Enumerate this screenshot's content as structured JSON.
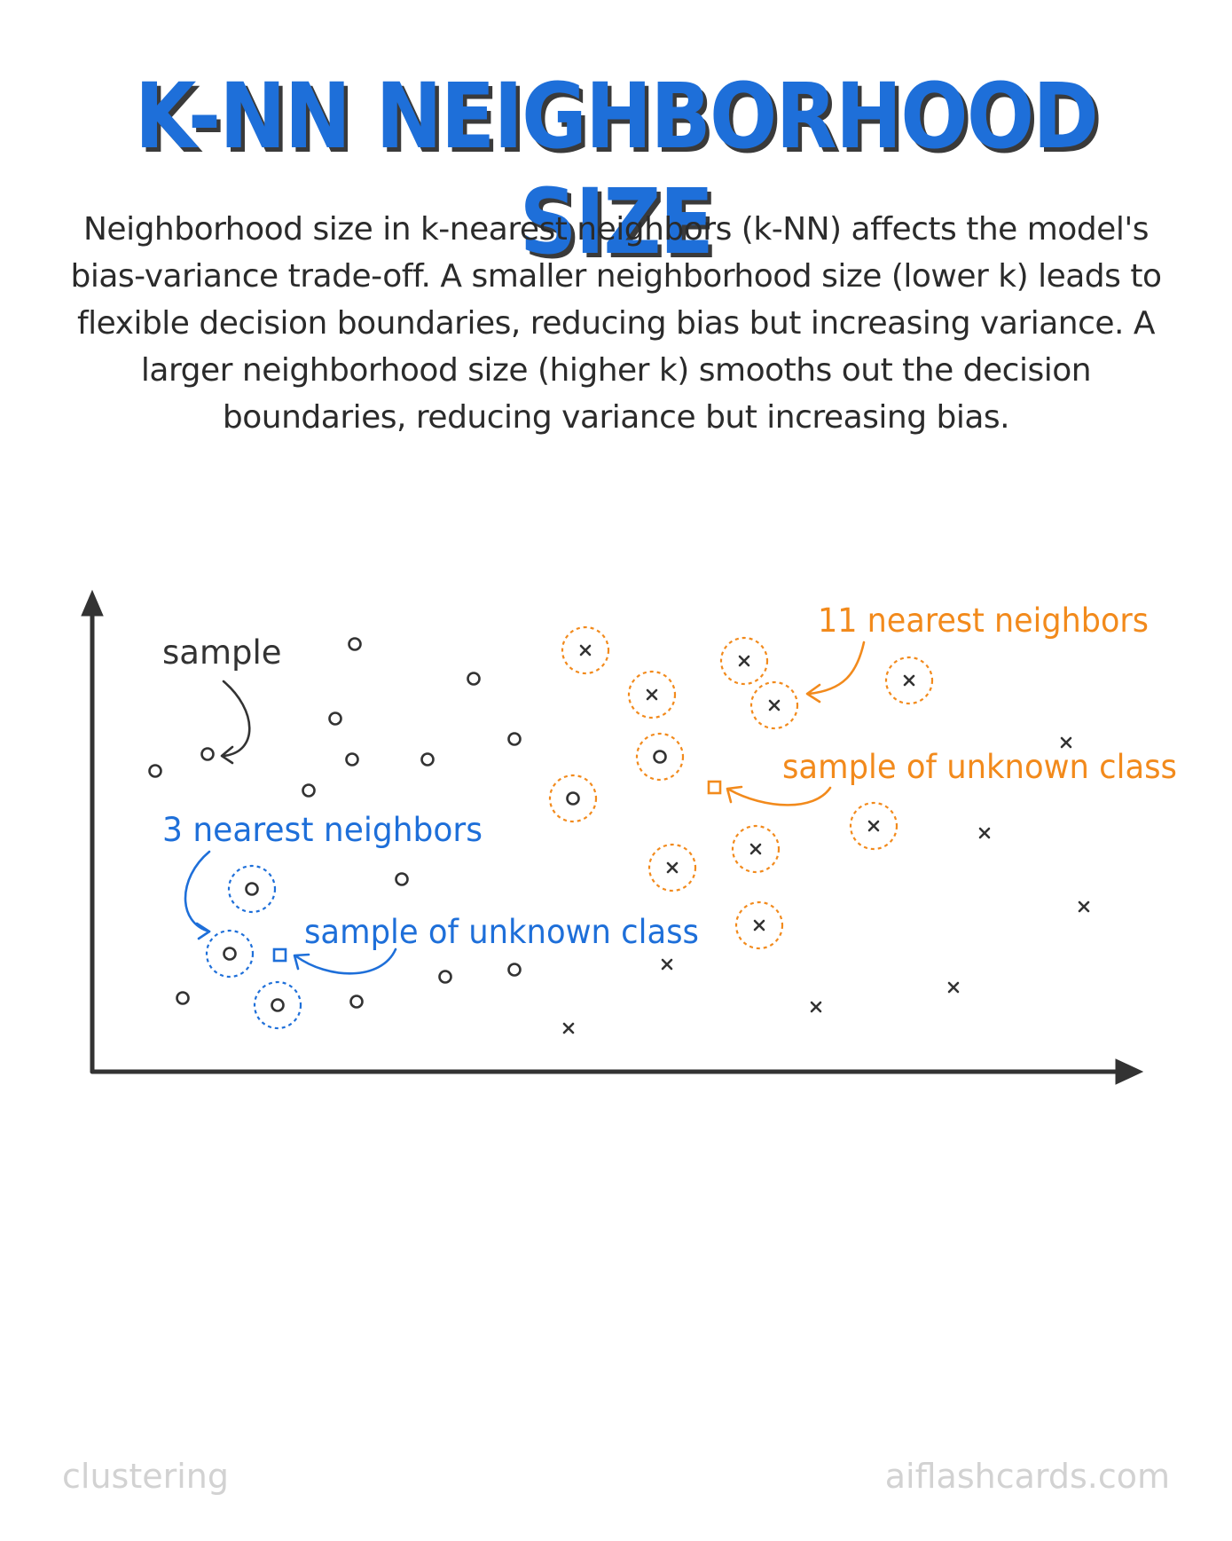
{
  "title": "K-NN NEIGHBORHOOD SIZE",
  "description_lines": [
    "Neighborhood size in k-nearest neighbors (k-NN) affects the model's",
    "bias-variance trade-off. A smaller neighborhood size (lower k) leads to",
    "flexible decision boundaries, reducing bias but increasing variance. A",
    "larger neighborhood size (higher k) smooths out the decision",
    "boundaries, reducing variance but increasing bias."
  ],
  "labels": {
    "sample": "sample",
    "k3": "3 nearest neighbors",
    "unknown_blue": "sample of unknown class",
    "k11": "11 nearest neighbors",
    "unknown_orange": "sample of unknown class"
  },
  "colors": {
    "title": "#1e6fd9",
    "blue": "#1e6fd9",
    "orange": "#f28a1c",
    "ink": "#333333",
    "footer": "#d2d2d2"
  },
  "footer": {
    "left": "clustering",
    "right": "aiflashcards.com"
  }
}
